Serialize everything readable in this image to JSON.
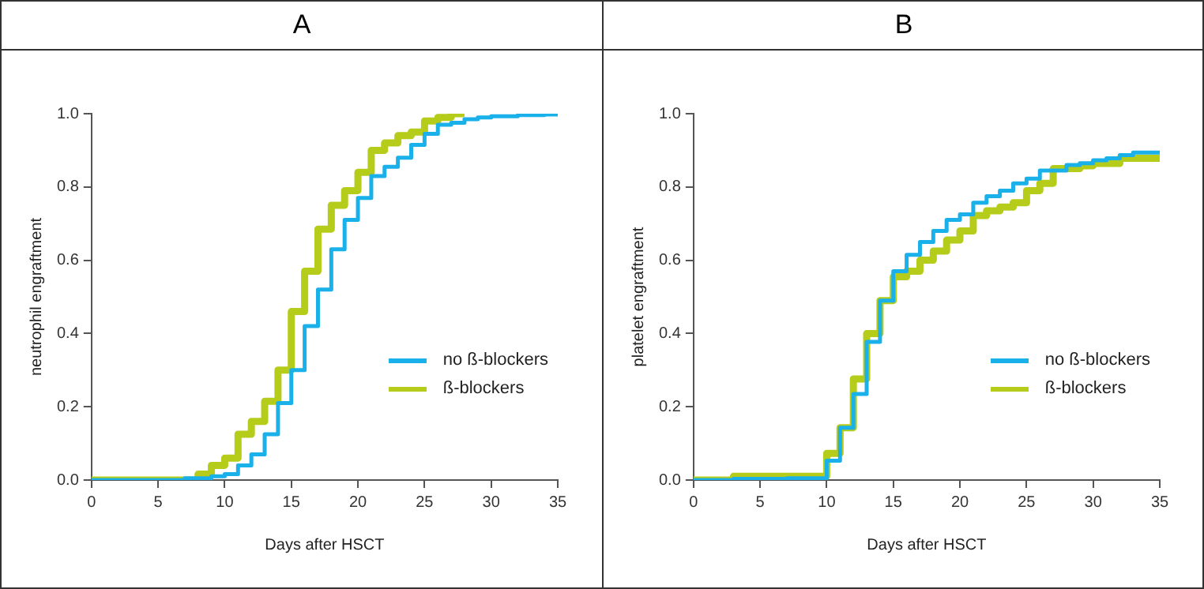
{
  "chart_data": [
    {
      "type": "step",
      "title": "A",
      "xlabel": "Days after HSCT",
      "ylabel": "neutrophil engraftment",
      "xlim": [
        0,
        35
      ],
      "xticks": [
        0,
        5,
        10,
        15,
        20,
        25,
        30,
        35
      ],
      "ylim": [
        0,
        1
      ],
      "yticks": [
        {
          "value": 0,
          "label": "0.0"
        },
        {
          "value": 0.2,
          "label": "0.2"
        },
        {
          "value": 0.4,
          "label": "0.4"
        },
        {
          "value": 0.6,
          "label": "0.6"
        },
        {
          "value": 0.8,
          "label": "0.8"
        },
        {
          "value": 1,
          "label": "1.0"
        }
      ],
      "grid": false,
      "legend": "bottom right",
      "series": [
        {
          "name": "no ß-blockers",
          "color": "#1ab0ea",
          "x": [
            0,
            7,
            9,
            10,
            11,
            12,
            13,
            14,
            15,
            16,
            17,
            18,
            19,
            20,
            21,
            22,
            23,
            24,
            25,
            26,
            27,
            28,
            29,
            30,
            32,
            34,
            35
          ],
          "values": [
            0,
            0.005,
            0.01,
            0.016,
            0.04,
            0.07,
            0.125,
            0.21,
            0.3,
            0.42,
            0.52,
            0.63,
            0.71,
            0.77,
            0.83,
            0.855,
            0.88,
            0.915,
            0.945,
            0.97,
            0.975,
            0.985,
            0.99,
            0.993,
            0.996,
            0.998,
            1
          ]
        },
        {
          "name": "ß-blockers",
          "color": "#b5cc1a",
          "x": [
            0,
            8,
            9,
            10,
            11,
            12,
            13,
            14,
            15,
            16,
            17,
            18,
            19,
            20,
            21,
            22,
            23,
            24,
            25,
            26,
            27,
            28
          ],
          "values": [
            0,
            0.016,
            0.04,
            0.06,
            0.125,
            0.16,
            0.215,
            0.3,
            0.46,
            0.57,
            0.685,
            0.75,
            0.79,
            0.84,
            0.9,
            0.92,
            0.94,
            0.95,
            0.98,
            0.99,
            1,
            1
          ]
        }
      ]
    },
    {
      "type": "step",
      "title": "B",
      "xlabel": "Days after HSCT",
      "ylabel": "platelet engraftment",
      "xlim": [
        0,
        35
      ],
      "xticks": [
        0,
        5,
        10,
        15,
        20,
        25,
        30,
        35
      ],
      "ylim": [
        0,
        1
      ],
      "yticks": [
        {
          "value": 0,
          "label": "0.0"
        },
        {
          "value": 0.2,
          "label": "0.2"
        },
        {
          "value": 0.4,
          "label": "0.4"
        },
        {
          "value": 0.6,
          "label": "0.6"
        },
        {
          "value": 0.8,
          "label": "0.8"
        },
        {
          "value": 1,
          "label": "1.0"
        }
      ],
      "grid": false,
      "legend": "bottom right",
      "series": [
        {
          "name": "no ß-blockers",
          "color": "#1ab0ea",
          "x": [
            0,
            3,
            7,
            10,
            11,
            12,
            13,
            14,
            15,
            16,
            17,
            18,
            19,
            20,
            21,
            22,
            23,
            24,
            25,
            26,
            28,
            29,
            30,
            31,
            32,
            33,
            35
          ],
          "values": [
            0,
            0.003,
            0.005,
            0.053,
            0.143,
            0.235,
            0.377,
            0.49,
            0.57,
            0.615,
            0.65,
            0.68,
            0.71,
            0.725,
            0.757,
            0.775,
            0.79,
            0.81,
            0.823,
            0.845,
            0.86,
            0.865,
            0.873,
            0.878,
            0.887,
            0.894,
            0.895
          ]
        },
        {
          "name": "ß-blockers",
          "color": "#b5cc1a",
          "x": [
            0,
            3,
            10,
            11,
            12,
            13,
            14,
            15,
            16,
            17,
            18,
            19,
            20,
            21,
            22,
            23,
            24,
            25,
            26,
            27,
            29,
            30,
            32,
            35
          ],
          "values": [
            0,
            0.01,
            0.073,
            0.143,
            0.276,
            0.4,
            0.49,
            0.555,
            0.57,
            0.6,
            0.625,
            0.655,
            0.68,
            0.722,
            0.735,
            0.745,
            0.757,
            0.79,
            0.81,
            0.85,
            0.858,
            0.864,
            0.878,
            0.88
          ]
        }
      ]
    }
  ]
}
